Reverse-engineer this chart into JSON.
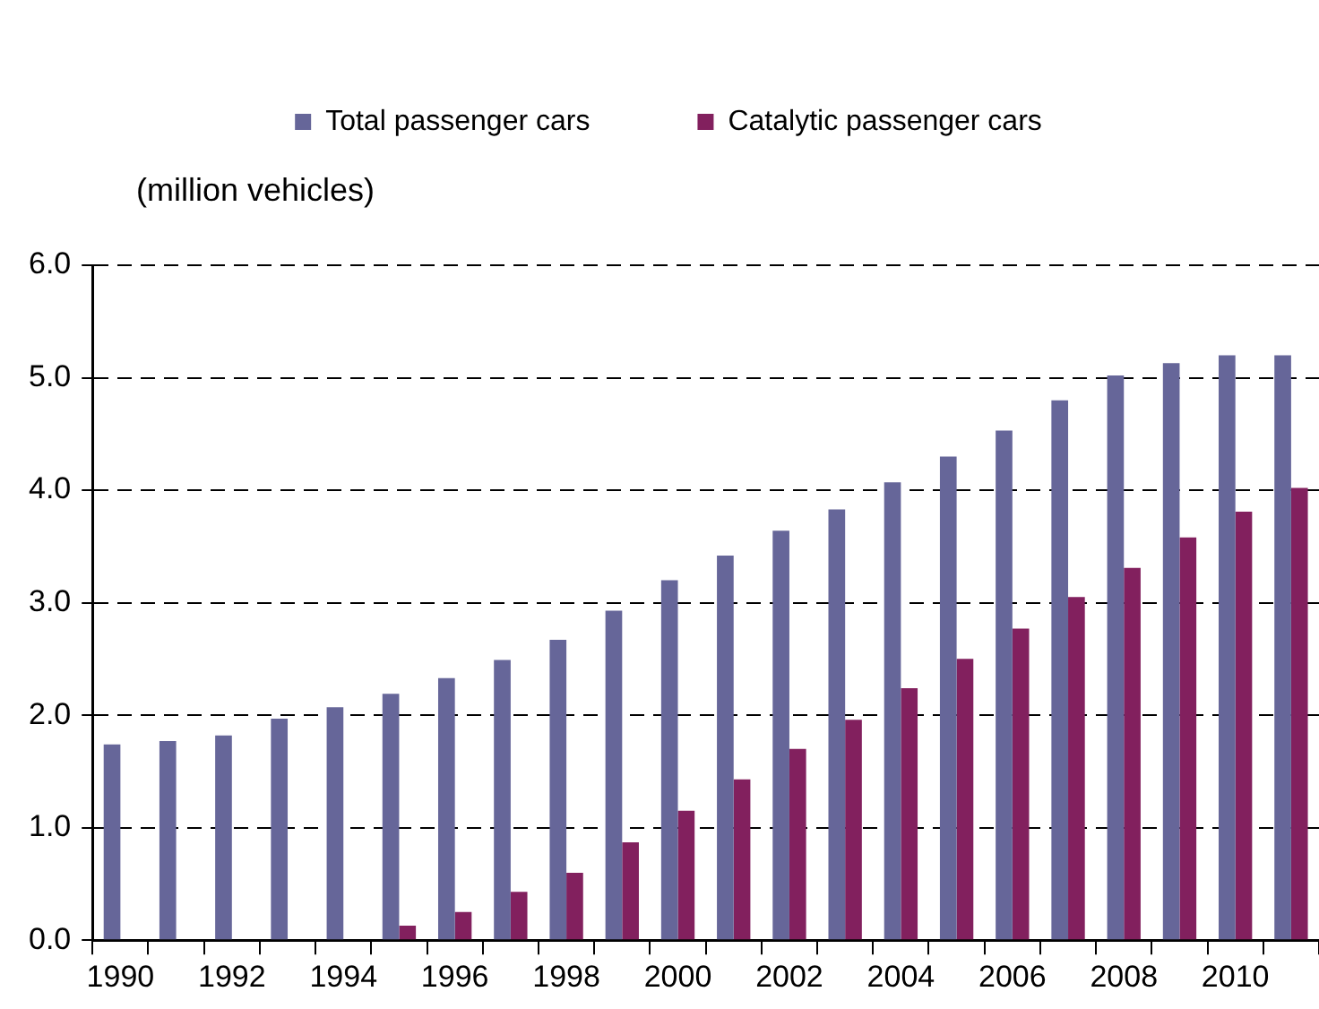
{
  "chart_data": {
    "type": "bar",
    "ylabel": "(million vehicles)",
    "categories": [
      "1990",
      null,
      "1992",
      null,
      "1994",
      null,
      "1996",
      null,
      "1998",
      null,
      "2000",
      null,
      "2002",
      null,
      "2004",
      null,
      "2006",
      null,
      "2008",
      null,
      "2010",
      null
    ],
    "series": [
      {
        "name": "Total passenger cars",
        "color": "#666699",
        "values": [
          1.74,
          1.77,
          1.82,
          1.97,
          2.07,
          2.19,
          2.33,
          2.49,
          2.67,
          2.93,
          3.2,
          3.42,
          3.64,
          3.83,
          4.07,
          4.3,
          4.53,
          4.8,
          5.02,
          5.13,
          5.2,
          5.2
        ]
      },
      {
        "name": "Catalytic passenger cars",
        "color": "#82205e",
        "values": [
          null,
          null,
          null,
          null,
          null,
          0.13,
          0.25,
          0.43,
          0.6,
          0.87,
          1.15,
          1.43,
          1.7,
          1.96,
          2.24,
          2.5,
          2.77,
          3.05,
          3.31,
          3.58,
          3.81,
          4.02
        ]
      }
    ],
    "ylim": [
      0,
      6
    ],
    "yticks": [
      {
        "value": 0,
        "label": "0.0"
      },
      {
        "value": 1,
        "label": "1.0"
      },
      {
        "value": 2,
        "label": "2.0"
      },
      {
        "value": 3,
        "label": "3.0"
      },
      {
        "value": 4,
        "label": "4.0"
      },
      {
        "value": 5,
        "label": "5.0"
      },
      {
        "value": 6,
        "label": "6.0"
      }
    ],
    "grid": "y",
    "legend": "top"
  }
}
